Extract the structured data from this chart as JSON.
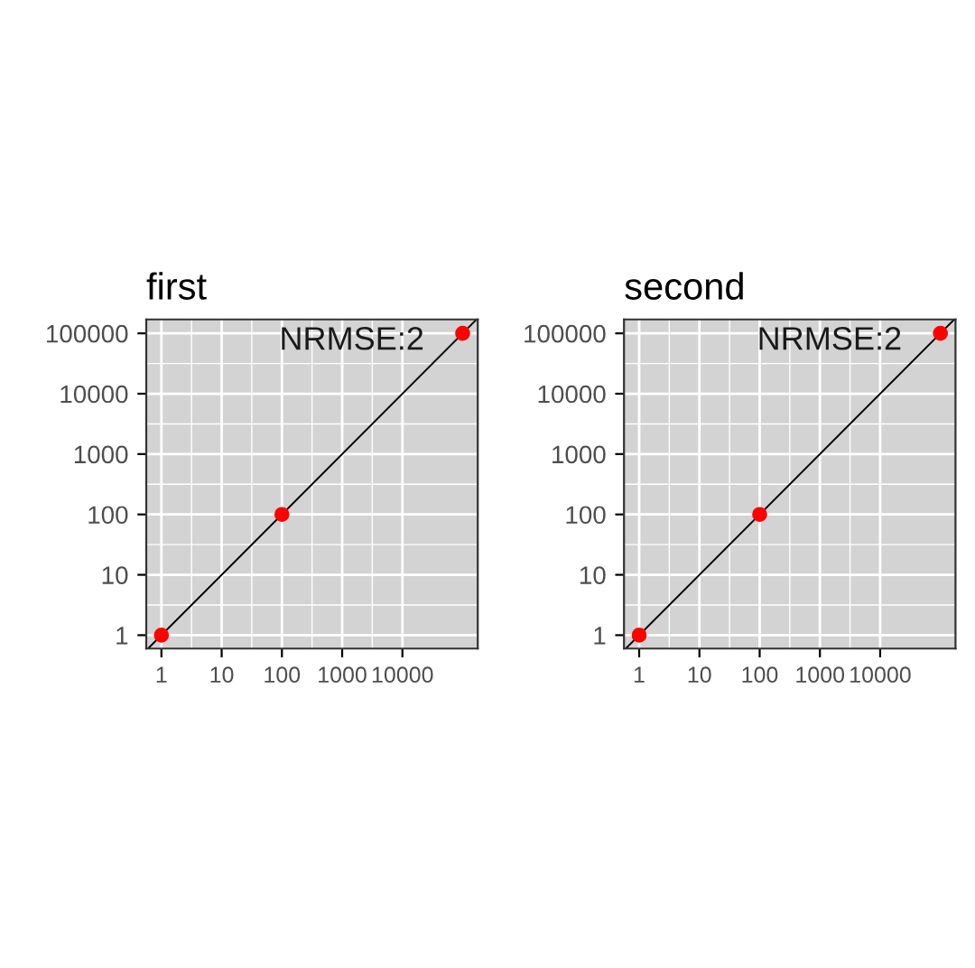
{
  "chart_data": [
    {
      "type": "scatter",
      "title": "first",
      "annotations": [
        "NRMSE:2"
      ],
      "log": "xy",
      "grid": true,
      "xlim": [
        0.56,
        178000
      ],
      "ylim": [
        0.6,
        170000
      ],
      "xticks": [
        1,
        10,
        100,
        1000,
        10000
      ],
      "yticks": [
        1,
        10,
        100,
        1000,
        10000,
        100000
      ],
      "series": [
        {
          "marker": "circle",
          "color": "#ff0000",
          "x": [
            1,
            100,
            100000
          ],
          "values": [
            1,
            100,
            100000
          ]
        },
        {
          "type": "line",
          "marker": "none",
          "color": "#000000",
          "x": [
            0.6,
            170000
          ],
          "values": [
            0.6,
            170000
          ]
        }
      ]
    },
    {
      "type": "scatter",
      "title": "second",
      "annotations": [
        "NRMSE:2"
      ],
      "log": "xy",
      "grid": true,
      "xlim": [
        0.56,
        178000
      ],
      "ylim": [
        0.6,
        170000
      ],
      "xticks": [
        1,
        10,
        100,
        1000,
        10000
      ],
      "yticks": [
        1,
        10,
        100,
        1000,
        10000,
        100000
      ],
      "series": [
        {
          "marker": "circle",
          "color": "#ff0000",
          "x": [
            1,
            100,
            100000
          ],
          "values": [
            1,
            100,
            100000
          ]
        },
        {
          "type": "line",
          "marker": "none",
          "color": "#000000",
          "x": [
            0.6,
            170000
          ],
          "values": [
            0.6,
            170000
          ]
        }
      ]
    }
  ]
}
